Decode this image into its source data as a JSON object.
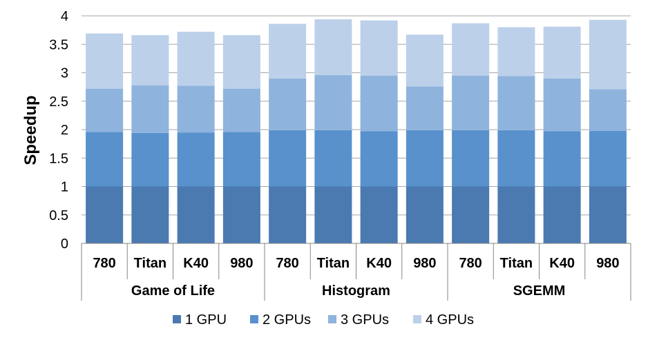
{
  "chart_data": {
    "type": "bar",
    "stacked": true,
    "ylabel": "Speedup",
    "ylim": [
      0,
      4
    ],
    "yticks": [
      "0",
      "0.5",
      "1",
      "1.5",
      "2",
      "2.5",
      "3",
      "3.5",
      "4"
    ],
    "grid": true,
    "legend_position": "bottom",
    "groups": [
      {
        "name": "Game of Life",
        "categories": [
          "780",
          "Titan",
          "K40",
          "980"
        ]
      },
      {
        "name": "Histogram",
        "categories": [
          "780",
          "Titan",
          "K40",
          "980"
        ]
      },
      {
        "name": "SGEMM",
        "categories": [
          "780",
          "Titan",
          "K40",
          "980"
        ]
      }
    ],
    "categories": [
      "780",
      "Titan",
      "K40",
      "980",
      "780",
      "Titan",
      "K40",
      "980",
      "780",
      "Titan",
      "K40",
      "980"
    ],
    "series": [
      {
        "name": "1 GPU",
        "color": "#4A7AB0",
        "values": [
          1.0,
          1.0,
          1.0,
          1.0,
          1.0,
          1.0,
          1.0,
          1.0,
          1.0,
          1.0,
          1.0,
          1.0
        ]
      },
      {
        "name": "2 GPUs",
        "color": "#5891CC",
        "values": [
          0.96,
          0.94,
          0.95,
          0.96,
          0.99,
          0.99,
          0.97,
          0.99,
          0.99,
          0.99,
          0.97,
          0.98
        ]
      },
      {
        "name": "3 GPUs",
        "color": "#8EB3DD",
        "values": [
          0.76,
          0.84,
          0.82,
          0.76,
          0.91,
          0.97,
          0.98,
          0.77,
          0.96,
          0.95,
          0.93,
          0.73
        ]
      },
      {
        "name": "4 GPUs",
        "color": "#BCD0EA",
        "values": [
          0.97,
          0.88,
          0.95,
          0.94,
          0.96,
          0.98,
          0.97,
          0.91,
          0.92,
          0.86,
          0.91,
          1.22
        ]
      }
    ]
  }
}
